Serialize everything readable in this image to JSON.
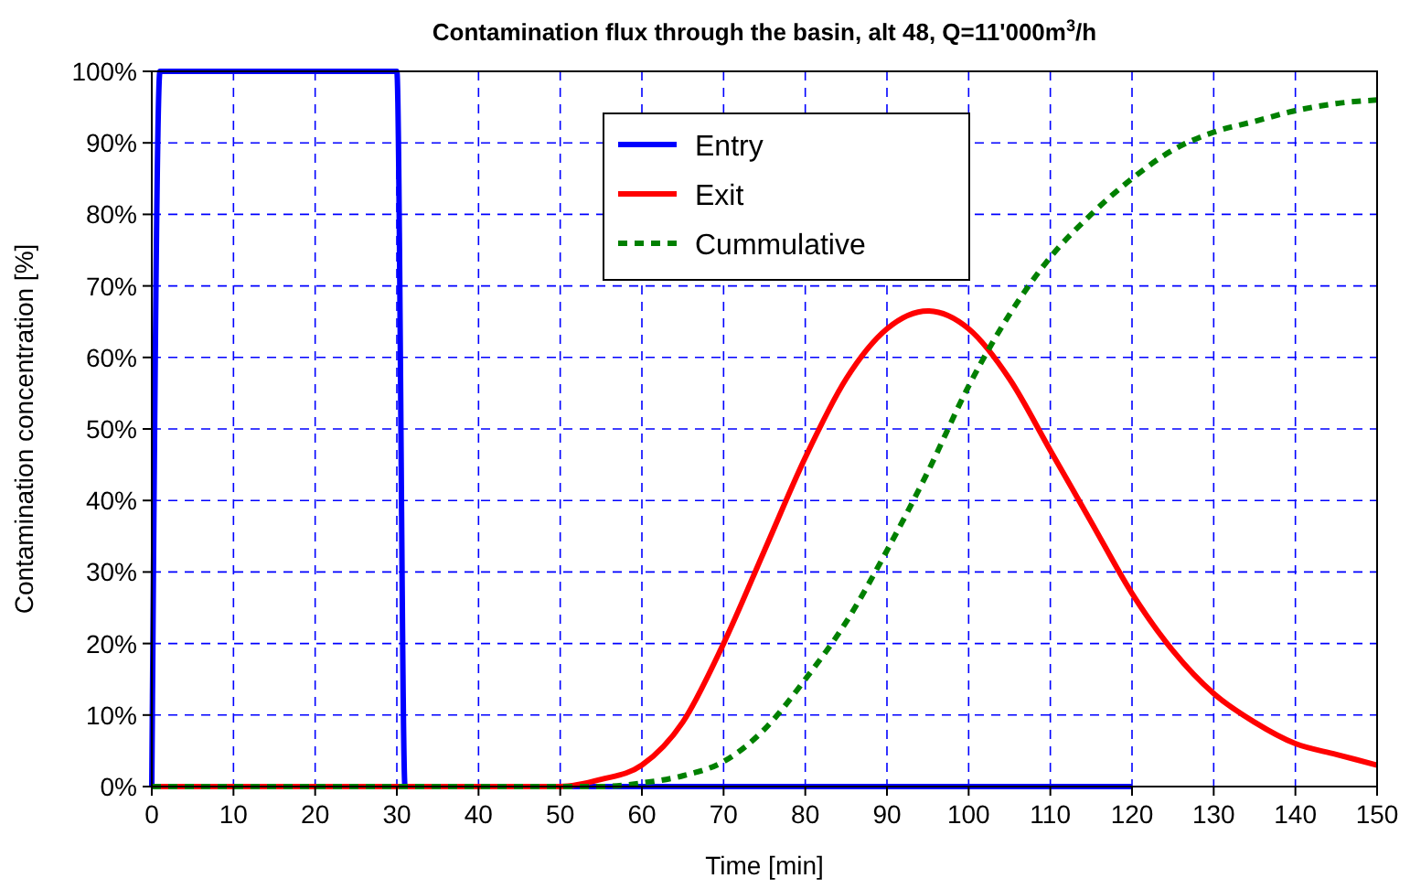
{
  "chart_data": {
    "type": "line",
    "title": "Contamination flux through the basin, alt 48, Q=11'000m$^{3}$/h",
    "xlabel": "Time [min]",
    "ylabel": "Contamination concentration [%]",
    "xlim": [
      0,
      150
    ],
    "xticks": [
      0,
      10,
      20,
      30,
      40,
      50,
      60,
      70,
      80,
      90,
      100,
      110,
      120,
      130,
      140,
      150
    ],
    "ylim": [
      0,
      100
    ],
    "yticks": [
      {
        "value": 0,
        "label": "0%"
      },
      {
        "value": 10,
        "label": "10%"
      },
      {
        "value": 20,
        "label": "20%"
      },
      {
        "value": 30,
        "label": "30%"
      },
      {
        "value": 40,
        "label": "40%"
      },
      {
        "value": 50,
        "label": "50%"
      },
      {
        "value": 60,
        "label": "60%"
      },
      {
        "value": 70,
        "label": "70%"
      },
      {
        "value": 80,
        "label": "80%"
      },
      {
        "value": 90,
        "label": "90%"
      },
      {
        "value": 100,
        "label": "100%"
      }
    ],
    "grid": true,
    "legend": "top",
    "series": [
      {
        "name": "Entry",
        "color": "#0000ff",
        "line_style": "solid",
        "x": [
          0,
          1,
          30,
          31,
          120
        ],
        "values": [
          0,
          100,
          100,
          0,
          0
        ]
      },
      {
        "name": "Exit",
        "color": "#ff0000",
        "line_style": "solid",
        "x": [
          0,
          50,
          55,
          60,
          65,
          70,
          75,
          80,
          85,
          90,
          95,
          100,
          105,
          110,
          115,
          120,
          125,
          130,
          135,
          140,
          145,
          150
        ],
        "values": [
          0,
          0,
          1,
          3,
          9,
          20,
          33,
          46,
          57,
          64,
          66.5,
          64,
          57,
          47,
          37,
          27,
          19,
          13,
          9,
          6,
          4.5,
          3
        ]
      },
      {
        "name": "Cummulative",
        "color": "#008000",
        "line_style": "dashed",
        "x": [
          0,
          55,
          60,
          65,
          70,
          75,
          80,
          85,
          90,
          95,
          100,
          105,
          110,
          115,
          120,
          125,
          130,
          135,
          140,
          145,
          150
        ],
        "values": [
          0,
          0,
          0.5,
          1.5,
          3.5,
          8,
          15,
          23,
          33,
          44,
          56,
          66,
          74,
          80,
          85,
          89,
          91.5,
          93,
          94.5,
          95.5,
          96
        ]
      }
    ]
  }
}
